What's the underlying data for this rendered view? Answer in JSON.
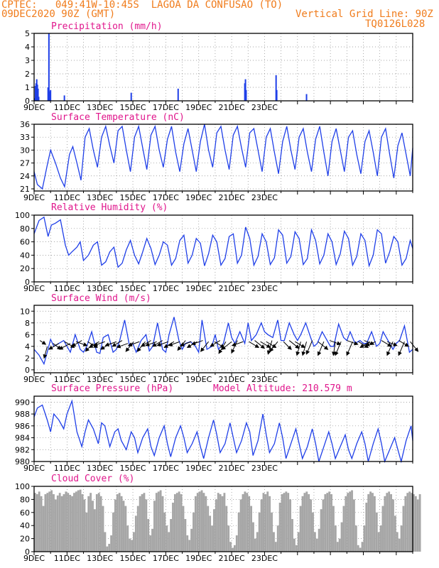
{
  "header": {
    "line1": "CPTEC:   049:41W-10:45S  LAGOA DA CONFUSAO (TO)",
    "line2": "09DEC2020 90Z (GMT)",
    "grid_note": "Vertical Grid Line: 90Z",
    "code": "TQ0126L028"
  },
  "colors": {
    "header": "#f07c1c",
    "title": "#e0168c",
    "line": "#1f3fe8",
    "cloud": "#a6a6a6",
    "wind_arrow": "#000000"
  },
  "x_ticks": [
    "9DEC",
    "11DEC",
    "13DEC",
    "15DEC",
    "17DEC",
    "19DEC",
    "21DEC",
    "23DEC"
  ],
  "chart_data": [
    {
      "type": "bar",
      "title": "Precipitation (mm/h)",
      "ylim": [
        0,
        5
      ],
      "yticks": [
        0,
        1,
        2,
        3,
        4,
        5
      ],
      "x_unit": "days since 9DEC 00Z",
      "x": [
        0.04,
        0.08,
        0.12,
        0.16,
        0.2,
        0.24,
        0.28,
        0.85,
        0.9,
        0.94,
        1.0,
        1.84,
        5.9,
        8.75,
        12.8,
        12.84,
        12.88,
        14.7,
        14.74,
        16.55
      ],
      "values": [
        0.2,
        1.1,
        1.3,
        1.6,
        1.2,
        0.9,
        0.3,
        1.0,
        5.0,
        0.7,
        0.8,
        0.4,
        0.6,
        0.9,
        1.3,
        1.6,
        0.8,
        1.9,
        0.8,
        0.5
      ]
    },
    {
      "type": "line",
      "title": "Surface Temperature (nC)",
      "ylim": [
        20.5,
        36
      ],
      "yticks": [
        21,
        24,
        27,
        30,
        33,
        36
      ],
      "x_unit": "days since 9DEC 00Z",
      "x": [
        0.0,
        0.2,
        0.5,
        0.8,
        1.0,
        1.3,
        1.6,
        1.85,
        2.15,
        2.35,
        2.6,
        2.85,
        3.1,
        3.35,
        3.6,
        3.85,
        4.1,
        4.35,
        4.6,
        4.85,
        5.1,
        5.35,
        5.6,
        5.85,
        6.1,
        6.35,
        6.6,
        6.85,
        7.1,
        7.35,
        7.6,
        7.85,
        8.1,
        8.35,
        8.6,
        8.85,
        9.1,
        9.35,
        9.6,
        9.85,
        10.1,
        10.35,
        10.6,
        10.85,
        11.1,
        11.35,
        11.6,
        11.85,
        12.1,
        12.35,
        12.6,
        12.85,
        13.1,
        13.35,
        13.6,
        13.85,
        14.1,
        14.35,
        14.6,
        14.85,
        15.1,
        15.35,
        15.6,
        15.85,
        16.1,
        16.35,
        16.6,
        16.85,
        17.1,
        17.35,
        17.6,
        17.85,
        18.1,
        18.35,
        18.6,
        18.85,
        19.1,
        19.35,
        19.6,
        19.85,
        20.1,
        20.35,
        20.6,
        20.85,
        21.1,
        21.35,
        21.6,
        21.85,
        22.1,
        22.35,
        22.6,
        22.85,
        23.0
      ],
      "values": [
        25.0,
        22.0,
        21.0,
        26.5,
        30.0,
        27.0,
        23.5,
        21.5,
        29.0,
        30.8,
        27.0,
        23.0,
        33.0,
        35.0,
        30.0,
        26.0,
        33.0,
        35.5,
        31.0,
        27.0,
        34.5,
        35.5,
        30.0,
        25.0,
        33.0,
        35.5,
        30.5,
        25.5,
        33.5,
        35.5,
        30.0,
        26.0,
        32.5,
        35.5,
        29.5,
        25.0,
        31.5,
        35.0,
        30.0,
        25.0,
        32.0,
        36.0,
        30.0,
        26.0,
        34.0,
        35.5,
        30.0,
        25.5,
        33.5,
        35.5,
        30.5,
        26.0,
        34.0,
        35.0,
        30.0,
        25.0,
        33.0,
        35.0,
        29.5,
        24.5,
        32.0,
        35.5,
        30.0,
        25.5,
        33.0,
        35.0,
        29.5,
        25.0,
        32.5,
        35.5,
        29.5,
        24.0,
        32.0,
        35.0,
        30.0,
        25.0,
        33.0,
        34.5,
        29.0,
        24.5,
        32.0,
        34.5,
        29.5,
        24.0,
        33.0,
        35.0,
        29.0,
        23.5,
        31.0,
        34.0,
        29.0,
        24.0,
        30.5
      ]
    },
    {
      "type": "line",
      "title": "Relative Humidity (%)",
      "ylim": [
        0,
        100
      ],
      "yticks": [
        0,
        20,
        40,
        60,
        80,
        100
      ],
      "x_unit": "days since 9DEC 00Z",
      "x": [
        0.0,
        0.3,
        0.6,
        0.85,
        1.05,
        1.3,
        1.6,
        1.9,
        2.1,
        2.3,
        2.6,
        2.8,
        3.0,
        3.3,
        3.6,
        3.85,
        4.1,
        4.35,
        4.6,
        4.85,
        5.1,
        5.35,
        5.6,
        5.85,
        6.1,
        6.35,
        6.6,
        6.85,
        7.1,
        7.35,
        7.6,
        7.85,
        8.1,
        8.35,
        8.6,
        8.85,
        9.1,
        9.35,
        9.6,
        9.85,
        10.1,
        10.35,
        10.6,
        10.85,
        11.1,
        11.35,
        11.6,
        11.85,
        12.1,
        12.35,
        12.6,
        12.85,
        13.1,
        13.35,
        13.6,
        13.85,
        14.1,
        14.35,
        14.6,
        14.85,
        15.1,
        15.35,
        15.6,
        15.85,
        16.1,
        16.35,
        16.6,
        16.85,
        17.1,
        17.35,
        17.6,
        17.85,
        18.1,
        18.35,
        18.6,
        18.85,
        19.1,
        19.35,
        19.6,
        19.85,
        20.1,
        20.35,
        20.6,
        20.85,
        21.1,
        21.35,
        21.6,
        21.85,
        22.1,
        22.35,
        22.6,
        22.85,
        23.0
      ],
      "values": [
        72.0,
        92.0,
        97.0,
        68.0,
        85.0,
        88.0,
        93.0,
        55.0,
        40.0,
        45.0,
        52.0,
        60.0,
        32.0,
        40.0,
        55.0,
        60.0,
        25.0,
        30.0,
        45.0,
        52.0,
        22.0,
        28.0,
        48.0,
        62.0,
        40.0,
        27.0,
        45.0,
        65.0,
        50.0,
        26.0,
        40.0,
        60.0,
        55.0,
        25.0,
        35.0,
        62.0,
        70.0,
        28.0,
        40.0,
        65.0,
        58.0,
        24.0,
        42.0,
        70.0,
        60.0,
        25.0,
        35.0,
        68.0,
        72.0,
        28.0,
        40.0,
        82.0,
        65.0,
        25.0,
        38.0,
        72.0,
        60.0,
        26.0,
        36.0,
        78.0,
        70.0,
        28.0,
        38.0,
        75.0,
        65.0,
        26.0,
        35.0,
        78.0,
        62.0,
        27.0,
        40.0,
        72.0,
        60.0,
        26.0,
        42.0,
        76.0,
        65.0,
        25.0,
        38.0,
        72.0,
        62.0,
        24.0,
        40.0,
        78.0,
        72.0,
        28.0,
        45.0,
        68.0,
        60.0,
        25.0,
        35.0,
        62.0,
        50.0
      ]
    },
    {
      "type": "line",
      "title": "Surface Wind (m/s)",
      "ylim": [
        -0.5,
        11
      ],
      "yticks": [
        0,
        2,
        4,
        6,
        8,
        10
      ],
      "x_unit": "days since 9DEC 00Z",
      "x": [
        0.0,
        0.3,
        0.6,
        0.8,
        1.0,
        1.2,
        1.5,
        1.8,
        2.0,
        2.2,
        2.5,
        2.8,
        3.0,
        3.2,
        3.5,
        3.8,
        4.0,
        4.2,
        4.5,
        4.8,
        5.0,
        5.2,
        5.5,
        5.8,
        6.0,
        6.2,
        6.5,
        6.8,
        7.0,
        7.2,
        7.5,
        7.8,
        8.0,
        8.2,
        8.5,
        8.8,
        9.0,
        9.2,
        9.5,
        9.8,
        10.0,
        10.2,
        10.5,
        10.8,
        11.0,
        11.2,
        11.5,
        11.8,
        12.0,
        12.2,
        12.5,
        12.8,
        13.0,
        13.2,
        13.5,
        13.8,
        14.0,
        14.2,
        14.5,
        14.8,
        15.0,
        15.2,
        15.5,
        15.8,
        16.0,
        16.2,
        16.5,
        16.8,
        17.0,
        17.2,
        17.5,
        17.8,
        18.0,
        18.2,
        18.5,
        18.8,
        19.0,
        19.2,
        19.5,
        19.8,
        20.0,
        20.2,
        20.5,
        20.8,
        21.0,
        21.2,
        21.5,
        21.8,
        22.0,
        22.2,
        22.5,
        22.8,
        23.0
      ],
      "values": [
        3.5,
        2.5,
        1.0,
        3.0,
        5.2,
        4.0,
        4.5,
        5.0,
        4.0,
        3.0,
        6.0,
        3.5,
        3.0,
        4.0,
        6.5,
        3.0,
        2.8,
        5.5,
        6.0,
        3.0,
        3.5,
        5.0,
        8.5,
        4.0,
        4.5,
        3.0,
        5.0,
        6.0,
        3.2,
        4.0,
        8.0,
        3.5,
        3.0,
        6.0,
        9.0,
        5.0,
        3.5,
        4.5,
        4.8,
        4.0,
        3.0,
        8.5,
        3.5,
        4.0,
        6.0,
        3.5,
        4.5,
        8.0,
        5.5,
        4.5,
        6.5,
        4.5,
        8.0,
        5.0,
        6.0,
        8.0,
        6.5,
        6.0,
        5.5,
        8.5,
        5.0,
        5.0,
        8.0,
        6.0,
        5.0,
        6.0,
        8.0,
        5.5,
        4.0,
        4.5,
        6.5,
        5.0,
        4.0,
        4.0,
        7.8,
        5.5,
        5.0,
        6.5,
        4.5,
        5.0,
        4.5,
        4.5,
        6.5,
        4.0,
        4.5,
        6.5,
        5.0,
        3.5,
        4.5,
        5.0,
        7.5,
        3.0,
        3.5
      ],
      "wind_vectors": {
        "x": [
          0.35,
          0.8,
          1.15,
          1.5,
          1.85,
          2.2,
          2.55,
          2.9,
          3.25,
          3.6,
          3.95,
          4.3,
          4.65,
          5.0,
          5.35,
          5.7,
          6.05,
          6.4,
          6.75,
          7.1,
          7.45,
          7.8,
          8.15,
          8.5,
          8.85,
          9.2,
          9.55,
          9.9,
          10.25,
          10.6,
          10.95,
          11.3,
          11.65,
          12.0,
          12.35,
          12.7,
          13.05,
          13.4,
          13.75,
          14.1,
          14.45,
          14.8,
          15.15,
          15.5,
          15.85,
          16.2,
          16.55,
          16.9,
          17.25,
          17.6,
          17.95,
          18.3,
          18.65,
          19.0,
          19.35,
          19.7,
          20.05,
          20.4,
          20.75,
          21.1,
          21.45,
          21.8,
          22.15,
          22.5,
          22.85
        ],
        "y": [
          5.0,
          4.0,
          4.5,
          4.5,
          4.8,
          4.5,
          4.8,
          5.0,
          4.8,
          4.5,
          4.8,
          4.8,
          4.5,
          4.8,
          5.0,
          4.5,
          4.8,
          4.8,
          4.8,
          5.0,
          4.8,
          5.0,
          4.8,
          4.8,
          4.8,
          5.0,
          4.8,
          4.8,
          5.0,
          4.8,
          4.8,
          5.0,
          4.8,
          4.8,
          5.0,
          4.8,
          4.8,
          5.0,
          4.8,
          4.8,
          5.0,
          4.8,
          4.8,
          5.0,
          4.8,
          4.8,
          4.8,
          5.0,
          4.8,
          4.8,
          5.0,
          4.8,
          4.8,
          5.0,
          4.8,
          4.8,
          5.0,
          4.8,
          4.8,
          5.0,
          4.8,
          4.8,
          5.0,
          4.8,
          4.8
        ],
        "u": [
          1.5,
          -0.8,
          2.0,
          -2.5,
          2.5,
          -2.8,
          2.8,
          -2.5,
          2.5,
          -2.0,
          -2.5,
          -2.8,
          -2.5,
          -2.8,
          -2.5,
          -2.8,
          -2.0,
          -2.8,
          -2.0,
          -2.5,
          -2.8,
          -2.5,
          -2.8,
          -2.5,
          -2.8,
          -2.0,
          -2.8,
          -2.5,
          -2.8,
          -2.0,
          2.5,
          -2.5,
          -1.8,
          -2.5,
          -1.5,
          -2.8,
          2.5,
          2.5,
          2.5,
          2.5,
          -1.0,
          -2.0,
          2.0,
          2.5,
          2.5,
          -1.0,
          -1.0,
          -1.5,
          2.5,
          -1.5,
          2.8,
          -0.5,
          -1.5,
          2.8,
          -1.5,
          2.5,
          2.5,
          -2.5,
          -2.5,
          2.5,
          2.5,
          -1.5,
          2.5,
          -1.5,
          2.0
        ],
        "v": [
          -1.0,
          -3.0,
          -1.5,
          -1.5,
          -1.5,
          -1.5,
          -1.0,
          -1.5,
          -1.5,
          -2.0,
          -1.5,
          -1.0,
          -1.5,
          -1.0,
          -1.5,
          -1.0,
          -2.5,
          -1.0,
          -2.5,
          -1.5,
          -1.0,
          -1.5,
          -1.0,
          -1.5,
          -1.0,
          -2.5,
          -1.0,
          -1.5,
          -1.0,
          -2.5,
          -1.5,
          -1.5,
          -3.0,
          -2.0,
          -3.2,
          -1.0,
          -1.5,
          -2.0,
          -1.5,
          -1.5,
          -3.5,
          -2.5,
          -2.0,
          -2.0,
          -1.5,
          -3.5,
          -3.5,
          -3.5,
          -2.0,
          -3.5,
          -1.0,
          -3.5,
          -3.5,
          -1.0,
          -3.5,
          -1.5,
          -1.0,
          -1.5,
          -1.0,
          -1.5,
          -1.0,
          -3.5,
          -1.5,
          -3.5,
          -2.5
        ]
      }
    },
    {
      "type": "line",
      "title": "Surface Pressure (hPa)",
      "annotation": "Model Altitude: 210.579  m",
      "ylim": [
        980,
        991
      ],
      "yticks": [
        980,
        982,
        984,
        986,
        988,
        990
      ],
      "x_unit": "days since 9DEC 00Z",
      "x": [
        0.0,
        0.2,
        0.5,
        0.8,
        1.0,
        1.2,
        1.5,
        1.8,
        2.0,
        2.3,
        2.6,
        2.9,
        3.1,
        3.3,
        3.6,
        3.9,
        4.1,
        4.3,
        4.6,
        4.9,
        5.1,
        5.3,
        5.6,
        5.9,
        6.1,
        6.3,
        6.6,
        6.9,
        7.1,
        7.3,
        7.6,
        7.9,
        8.1,
        8.3,
        8.6,
        8.9,
        9.1,
        9.3,
        9.6,
        9.9,
        10.1,
        10.3,
        10.6,
        10.9,
        11.1,
        11.3,
        11.6,
        11.9,
        12.1,
        12.3,
        12.6,
        12.9,
        13.1,
        13.3,
        13.6,
        13.9,
        14.1,
        14.3,
        14.6,
        14.9,
        15.1,
        15.3,
        15.6,
        15.9,
        16.1,
        16.3,
        16.6,
        16.9,
        17.1,
        17.3,
        17.6,
        17.9,
        18.1,
        18.3,
        18.6,
        18.9,
        19.1,
        19.3,
        19.6,
        19.9,
        20.1,
        20.3,
        20.6,
        20.9,
        21.1,
        21.3,
        21.6,
        21.9,
        22.1,
        22.3,
        22.6,
        22.9,
        23.0
      ],
      "values": [
        987.5,
        989.0,
        989.5,
        987.0,
        985.0,
        988.0,
        987.0,
        985.5,
        988.0,
        990.2,
        985.0,
        982.5,
        985.0,
        987.0,
        985.5,
        983.0,
        986.5,
        986.0,
        982.5,
        985.0,
        985.5,
        983.5,
        982.0,
        985.0,
        984.0,
        981.5,
        984.0,
        985.5,
        982.5,
        981.0,
        984.0,
        986.0,
        983.0,
        980.8,
        984.0,
        986.0,
        984.0,
        981.5,
        983.0,
        985.0,
        982.5,
        980.5,
        984.0,
        987.0,
        984.5,
        981.5,
        983.0,
        986.5,
        984.0,
        981.5,
        983.5,
        986.5,
        985.0,
        981.0,
        983.5,
        988.0,
        984.5,
        981.5,
        983.0,
        986.5,
        984.0,
        980.5,
        983.0,
        985.5,
        983.0,
        980.5,
        982.5,
        985.5,
        983.0,
        980.0,
        982.5,
        985.0,
        983.0,
        980.5,
        982.5,
        984.5,
        982.0,
        980.5,
        983.0,
        985.0,
        983.0,
        980.0,
        983.0,
        985.5,
        983.0,
        980.0,
        982.0,
        984.0,
        982.0,
        980.0,
        983.5,
        986.0,
        983.5
      ]
    },
    {
      "type": "bar",
      "title": "Cloud Cover (%)",
      "ylim": [
        0,
        100
      ],
      "yticks": [
        0,
        20,
        40,
        60,
        80,
        100
      ],
      "x_unit": "days since 9DEC 00Z",
      "x_start": 0,
      "x_step": 0.125,
      "values": [
        90,
        88,
        92,
        85,
        70,
        88,
        90,
        92,
        94,
        88,
        80,
        86,
        90,
        85,
        88,
        92,
        90,
        87,
        85,
        90,
        92,
        94,
        95,
        88,
        80,
        60,
        85,
        90,
        78,
        65,
        88,
        90,
        85,
        70,
        30,
        8,
        12,
        25,
        60,
        80,
        88,
        90,
        85,
        78,
        70,
        40,
        20,
        18,
        30,
        55,
        70,
        85,
        88,
        90,
        80,
        50,
        25,
        35,
        78,
        90,
        92,
        94,
        85,
        60,
        40,
        30,
        50,
        75,
        88,
        90,
        92,
        88,
        70,
        50,
        25,
        18,
        35,
        60,
        85,
        90,
        92,
        94,
        90,
        85,
        70,
        55,
        40,
        65,
        80,
        90,
        88,
        85,
        90,
        70,
        40,
        15,
        6,
        10,
        25,
        60,
        80,
        88,
        92,
        90,
        85,
        70,
        45,
        20,
        30,
        60,
        80,
        90,
        88,
        92,
        85,
        60,
        30,
        15,
        40,
        75,
        88,
        90,
        92,
        90,
        80,
        50,
        20,
        10,
        30,
        70,
        85,
        90,
        92,
        88,
        80,
        60,
        30,
        20,
        35,
        65,
        80,
        88,
        90,
        92,
        88,
        70,
        40,
        15,
        20,
        45,
        70,
        85,
        90,
        92,
        94,
        80,
        40,
        10,
        6,
        15,
        40,
        75,
        88,
        92,
        90,
        85,
        60,
        30,
        40,
        70,
        85,
        90,
        92,
        88,
        80,
        55,
        30,
        20,
        40,
        70,
        85,
        90,
        92,
        90,
        88,
        85,
        80,
        88
      ]
    }
  ]
}
